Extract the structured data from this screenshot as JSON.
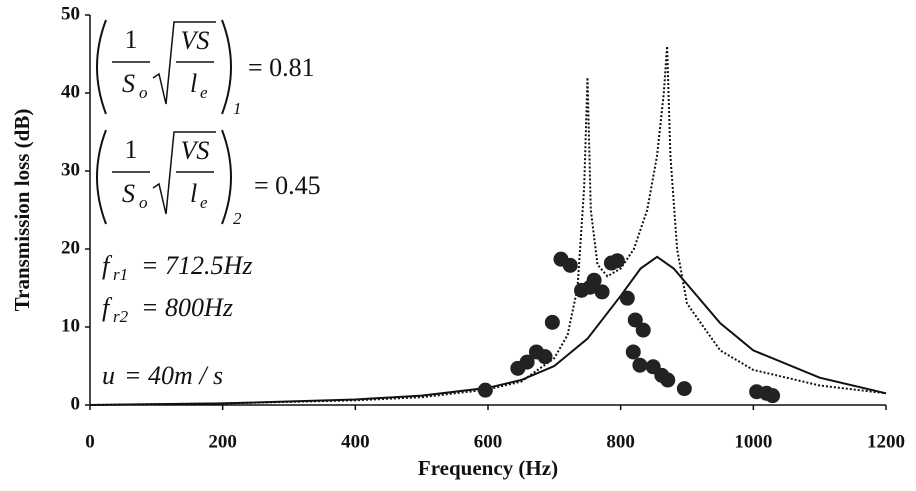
{
  "chart_data": {
    "type": "line",
    "x_label": "Frequency (Hz)",
    "y_label": "Transmission loss (dB)",
    "xlim": [
      0,
      1200
    ],
    "ylim": [
      0,
      50
    ],
    "xticks": [
      0,
      200,
      400,
      600,
      800,
      1000,
      1200
    ],
    "yticks": [
      0,
      10,
      20,
      30,
      40,
      50
    ],
    "series": [
      {
        "type": "line",
        "color": "#111111",
        "dash": "2,2",
        "x": [
          0,
          200,
          400,
          500,
          600,
          650,
          700,
          720,
          735,
          745,
          750,
          755,
          765,
          780,
          800,
          820,
          840,
          855,
          865,
          870,
          875,
          885,
          900,
          950,
          1000,
          1100,
          1200
        ],
        "values": [
          0,
          0.2,
          0.6,
          1,
          2,
          3,
          6,
          9,
          15,
          28,
          42,
          25,
          18,
          16.5,
          17.5,
          20,
          25,
          32,
          40,
          46,
          32,
          20,
          13,
          7,
          4.5,
          2.5,
          1.5
        ]
      },
      {
        "type": "line",
        "color": "#111111",
        "x": [
          0,
          200,
          400,
          500,
          600,
          650,
          700,
          750,
          800,
          830,
          855,
          880,
          900,
          950,
          1000,
          1100,
          1200
        ],
        "values": [
          0,
          0.2,
          0.7,
          1.2,
          2.2,
          3.2,
          5,
          8.5,
          14,
          17.5,
          19,
          17.5,
          15.5,
          10.5,
          7,
          3.5,
          1.5
        ]
      },
      {
        "type": "scatter",
        "color": "#222222",
        "x": [
          596,
          645,
          659,
          673,
          686,
          697,
          710,
          724,
          741,
          754,
          760,
          772,
          786,
          795,
          810,
          822,
          834,
          819,
          829,
          849,
          862,
          871,
          896,
          1005,
          1020,
          1029
        ],
        "values": [
          1.9,
          4.7,
          5.5,
          6.8,
          6.2,
          10.6,
          18.7,
          17.9,
          14.7,
          15.1,
          16.0,
          14.5,
          18.2,
          18.5,
          13.7,
          10.9,
          9.6,
          6.8,
          5.1,
          4.9,
          3.8,
          3.2,
          2.1,
          1.7,
          1.5,
          1.2
        ]
      }
    ],
    "formulas": [
      {
        "numerator": "1",
        "denominator": "S",
        "denominator_sub": "o",
        "radicand_top": "VS",
        "radicand_bottom": "l",
        "radicand_bottom_sub": "e",
        "subscript": "1",
        "text": "= 0.81"
      },
      {
        "numerator": "1",
        "denominator": "S",
        "denominator_sub": "o",
        "radicand_top": "VS",
        "radicand_bottom": "l",
        "radicand_bottom_sub": "e",
        "subscript": "2",
        "text": "= 0.45"
      }
    ],
    "parameters": [
      {
        "symbol": "f",
        "sub": "r1",
        "text": "= 712.5Hz"
      },
      {
        "symbol": "f",
        "sub": "r2",
        "text": "= 800Hz"
      },
      {
        "symbol": "u",
        "text": "= 40m / s"
      }
    ]
  }
}
